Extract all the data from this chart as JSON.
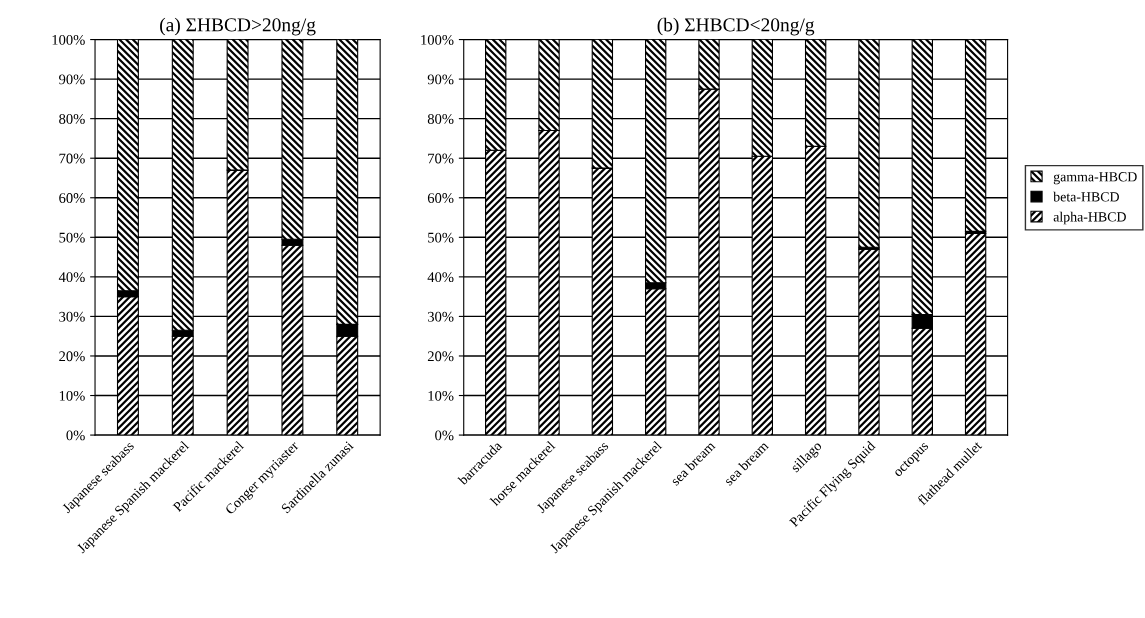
{
  "chart_data": [
    {
      "type": "bar",
      "title": "(a) ΣHBCD>20ng/g",
      "stacked": true,
      "grid": "y",
      "legend": false,
      "categories": [
        "Japanese seabass",
        "Japanese Spanish mackerel",
        "Pacific mackerel",
        "Conger myriaster",
        "Sardinella zunasi"
      ],
      "series": [
        {
          "color": "#000000",
          "values": [
            35,
            25,
            67,
            48,
            25
          ]
        },
        {
          "color": "#000000",
          "values": [
            1.5,
            1.5,
            0,
            1.5,
            3
          ]
        },
        {
          "color": "#000000",
          "values": [
            63.5,
            73.5,
            33,
            50.5,
            72
          ]
        }
      ],
      "ylim": [
        0,
        100
      ],
      "yticks": [
        {
          "value": 0,
          "label": "0%"
        },
        {
          "value": 10,
          "label": "10%"
        },
        {
          "value": 20,
          "label": "20%"
        },
        {
          "value": 30,
          "label": "30%"
        },
        {
          "value": 40,
          "label": "40%"
        },
        {
          "value": 50,
          "label": "50%"
        },
        {
          "value": 60,
          "label": "60%"
        },
        {
          "value": 70,
          "label": "70%"
        },
        {
          "value": 80,
          "label": "80%"
        },
        {
          "value": 90,
          "label": "90%"
        },
        {
          "value": 100,
          "label": "100%"
        }
      ]
    },
    {
      "type": "bar",
      "title": "(b) ΣHBCD<20ng/g",
      "stacked": true,
      "grid": "y",
      "legend": "right",
      "categories": [
        "barracuda",
        "horse mackerel",
        "Japanese seabass",
        "Japanese Spanish mackerel",
        "sea bream",
        "sea bream",
        "sillago",
        "Pacific Flying Squid",
        "octopus",
        "flathead mullet"
      ],
      "series": [
        {
          "name": "alpha-HBCD",
          "color": "#000000",
          "values": [
            72,
            77,
            67.5,
            37,
            87.5,
            70.5,
            73,
            47,
            27,
            51
          ]
        },
        {
          "name": "beta-HBCD",
          "color": "#000000",
          "values": [
            0,
            0,
            0,
            1.5,
            0,
            0,
            0,
            0.5,
            3.5,
            0.5
          ]
        },
        {
          "name": "gamma-HBCD",
          "color": "#000000",
          "values": [
            28,
            23,
            32.5,
            61.5,
            12.5,
            29.5,
            27,
            52.5,
            69.5,
            48.5
          ]
        }
      ],
      "ylim": [
        0,
        100
      ],
      "yticks": [
        {
          "value": 0,
          "label": "0%"
        },
        {
          "value": 10,
          "label": "10%"
        },
        {
          "value": 20,
          "label": "20%"
        },
        {
          "value": 30,
          "label": "30%"
        },
        {
          "value": 40,
          "label": "40%"
        },
        {
          "value": 50,
          "label": "50%"
        },
        {
          "value": 60,
          "label": "60%"
        },
        {
          "value": 70,
          "label": "70%"
        },
        {
          "value": 80,
          "label": "80%"
        },
        {
          "value": 90,
          "label": "90%"
        },
        {
          "value": 100,
          "label": "100%"
        }
      ]
    }
  ]
}
